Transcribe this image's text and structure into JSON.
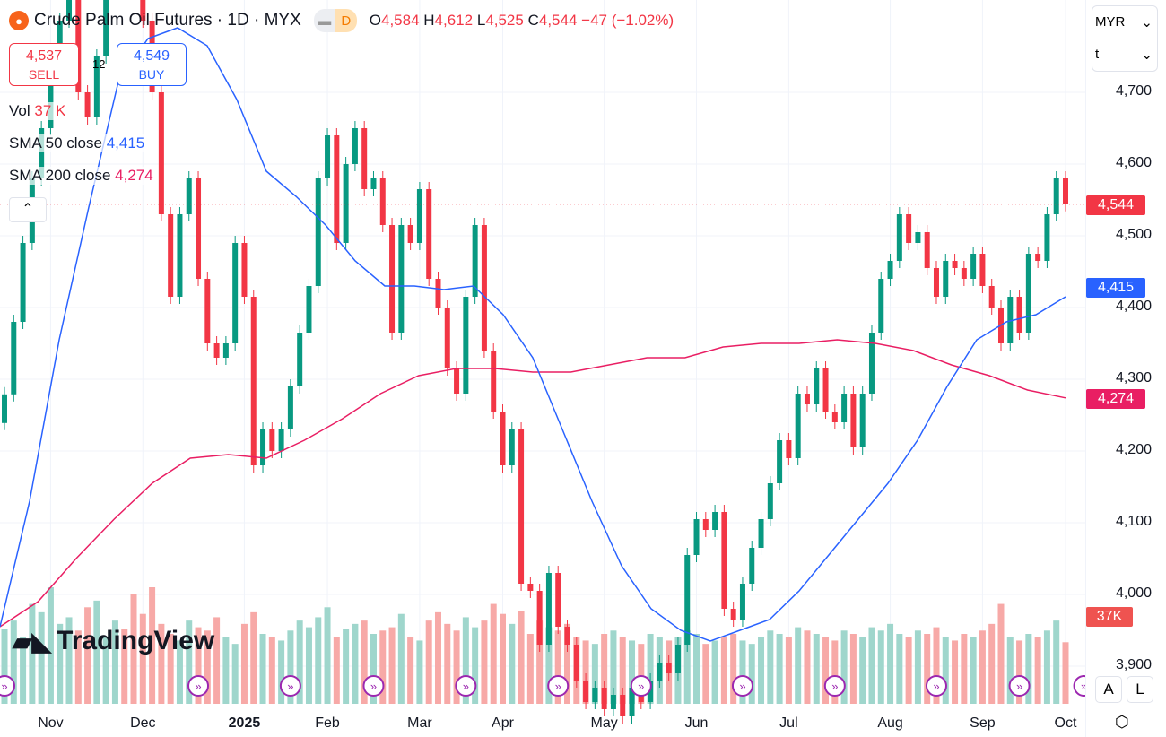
{
  "header": {
    "title": "Crude Palm Oil Futures · 1D · MYX",
    "badge": "D",
    "o_label": "O",
    "o": "4,584",
    "h_label": "H",
    "h": "4,612",
    "l_label": "L",
    "l": "4,525",
    "c_label": "C",
    "c": "4,544",
    "change": "−47 (−1.02%)"
  },
  "trade": {
    "sell_price": "4,537",
    "sell_label": "SELL",
    "spread": "12",
    "buy_price": "4,549",
    "buy_label": "BUY"
  },
  "legend": {
    "vol_label": "Vol",
    "vol_value": "37 K",
    "sma50_label": "SMA 50 close",
    "sma50_value": "4,415",
    "sma200_label": "SMA 200 close",
    "sma200_value": "4,274"
  },
  "axis": {
    "currency": "MYR",
    "unit": "t",
    "auto": "A",
    "log": "L"
  },
  "colors": {
    "up": "#089981",
    "down": "#f23645",
    "sma50": "#2962ff",
    "sma200": "#e91e63",
    "events": "#9c27b0"
  },
  "chart_data": {
    "type": "candlestick",
    "yticks": [
      4700,
      4600,
      4500,
      4400,
      4300,
      4200,
      4100,
      4000,
      3900
    ],
    "ytick_labels": [
      "4,700",
      "4,600",
      "4,500",
      "4,400",
      "4,300",
      "4,200",
      "4,100",
      "4,000",
      "3,900"
    ],
    "xtick_labels": [
      "Nov",
      "Dec",
      "2025",
      "Feb",
      "Mar",
      "Apr",
      "May",
      "Jun",
      "Jul",
      "Aug",
      "Sep",
      "Oct"
    ],
    "xtick_index": [
      5,
      15,
      26,
      35,
      45,
      54,
      65,
      75,
      85,
      96,
      106,
      115
    ],
    "close": [
      4279,
      4380,
      4490,
      4580,
      4650,
      4720,
      4800,
      4850,
      4700,
      4665,
      4750,
      4850,
      4900,
      4880,
      4850,
      4800,
      4700,
      4530,
      4415,
      4530,
      4580,
      4440,
      4350,
      4330,
      4350,
      4490,
      4415,
      4180,
      4230,
      4200,
      4230,
      4290,
      4365,
      4430,
      4580,
      4640,
      4490,
      4600,
      4650,
      4565,
      4580,
      4515,
      4365,
      4515,
      4490,
      4565,
      4440,
      4400,
      4315,
      4280,
      4415,
      4515,
      4340,
      4255,
      4180,
      4230,
      4015,
      4005,
      3930,
      4030,
      3955,
      3930,
      3880,
      3850,
      3870,
      3840,
      3860,
      3830,
      3870,
      3850,
      3880,
      3905,
      3890,
      3930,
      4055,
      4105,
      4090,
      4115,
      3980,
      3965,
      4015,
      4065,
      4105,
      4155,
      4215,
      4190,
      4280,
      4265,
      4315,
      4255,
      4240,
      4280,
      4205,
      4280,
      4365,
      4440,
      4465,
      4530,
      4490,
      4505,
      4455,
      4415,
      4465,
      4455,
      4440,
      4475,
      4430,
      4400,
      4350,
      4415,
      4365,
      4475,
      4465,
      4530,
      4580,
      4544
    ],
    "volume_k": [
      45,
      50,
      40,
      60,
      55,
      70,
      48,
      52,
      44,
      58,
      62,
      40,
      50,
      45,
      66,
      54,
      70,
      48,
      42,
      38,
      50,
      46,
      44,
      52,
      40,
      36,
      48,
      55,
      42,
      40,
      38,
      44,
      50,
      46,
      52,
      58,
      40,
      45,
      48,
      50,
      42,
      44,
      46,
      54,
      40,
      38,
      50,
      55,
      48,
      44,
      52,
      46,
      50,
      60,
      54,
      48,
      56,
      42,
      50,
      46,
      44,
      48,
      40,
      38,
      36,
      42,
      44,
      40,
      38,
      36,
      42,
      40,
      38,
      40,
      44,
      42,
      36,
      38,
      40,
      42,
      38,
      36,
      40,
      44,
      42,
      40,
      46,
      44,
      42,
      40,
      38,
      44,
      42,
      40,
      46,
      44,
      48,
      42,
      40,
      44,
      42,
      46,
      40,
      38,
      42,
      40,
      44,
      48,
      60,
      40,
      38,
      42,
      40,
      44,
      50,
      37
    ],
    "volume_latest": "37K",
    "sma50": [
      3955,
      4130,
      4355,
      4540,
      4715,
      4775,
      4790,
      4765,
      4690,
      4590,
      4555,
      4515,
      4465,
      4430,
      4430,
      4425,
      4430,
      4390,
      4330,
      4230,
      4130,
      4040,
      3980,
      3950,
      3935,
      3950,
      3965,
      4005,
      4055,
      4105,
      4155,
      4215,
      4290,
      4355,
      4380,
      4390,
      4415
    ],
    "sma200": [
      3955,
      3990,
      4050,
      4105,
      4155,
      4190,
      4195,
      4190,
      4215,
      4245,
      4280,
      4305,
      4315,
      4315,
      4310,
      4310,
      4320,
      4330,
      4330,
      4345,
      4350,
      4350,
      4355,
      4350,
      4340,
      4320,
      4305,
      4285,
      4274
    ],
    "last_price": "4,544",
    "sma50_last": "4,415",
    "sma200_last": "4,274",
    "event_index": [
      0,
      21,
      31,
      40,
      50,
      60,
      69,
      80,
      90,
      101,
      110,
      117
    ]
  }
}
